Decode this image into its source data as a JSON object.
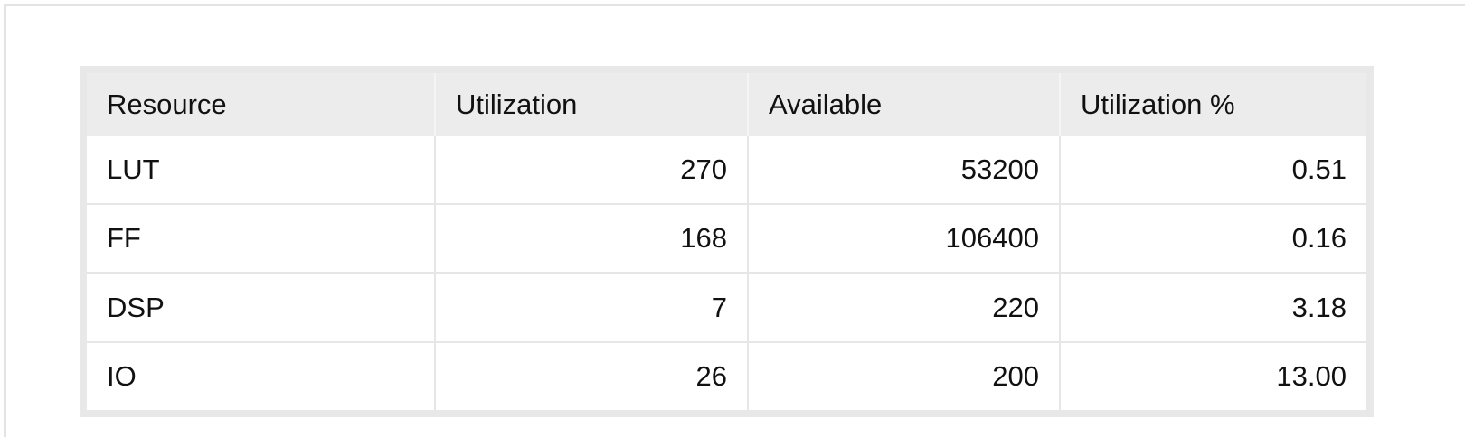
{
  "utilization_table": {
    "headers": [
      "Resource",
      "Utilization",
      "Available",
      "Utilization %"
    ],
    "rows": [
      {
        "resource": "LUT",
        "utilization": "270",
        "available": "53200",
        "utilization_pct": "0.51"
      },
      {
        "resource": "FF",
        "utilization": "168",
        "available": "106400",
        "utilization_pct": "0.16"
      },
      {
        "resource": "DSP",
        "utilization": "7",
        "available": "220",
        "utilization_pct": "3.18"
      },
      {
        "resource": "IO",
        "utilization": "26",
        "available": "200",
        "utilization_pct": "13.00"
      }
    ]
  }
}
